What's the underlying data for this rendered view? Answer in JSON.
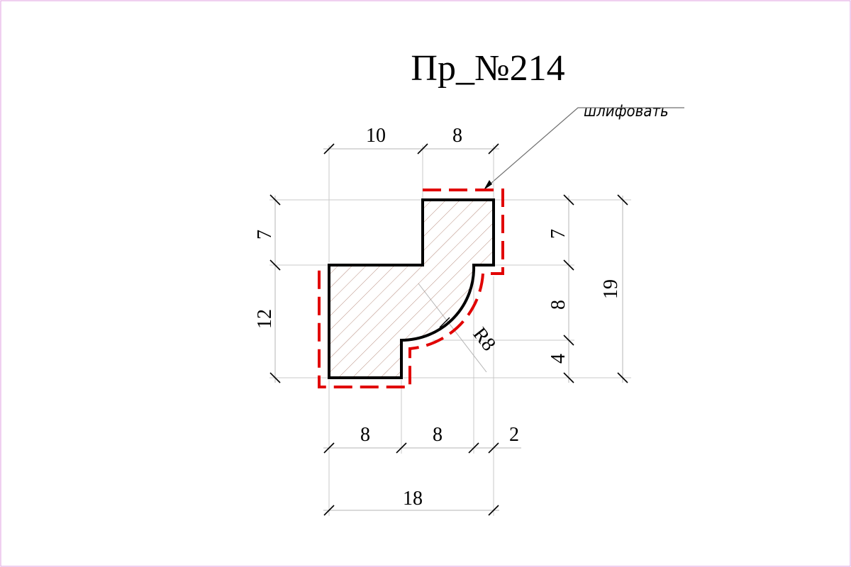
{
  "drawing": {
    "title": "Пр_№214",
    "note": "шлифовать",
    "colors": {
      "border": "#e0a0e0",
      "profile_outline": "#000000",
      "grinding_line": "#e10000",
      "hatch": "#b08070"
    },
    "dimensions": {
      "top_left": "10",
      "top_right": "8",
      "left_upper": "7",
      "left_lower": "12",
      "right_upper": "7",
      "right_middle": "8",
      "right_lower": "4",
      "right_total": "19",
      "bottom_1": "8",
      "bottom_2": "8",
      "bottom_3": "2",
      "bottom_total": "18",
      "radius": "R8"
    }
  }
}
